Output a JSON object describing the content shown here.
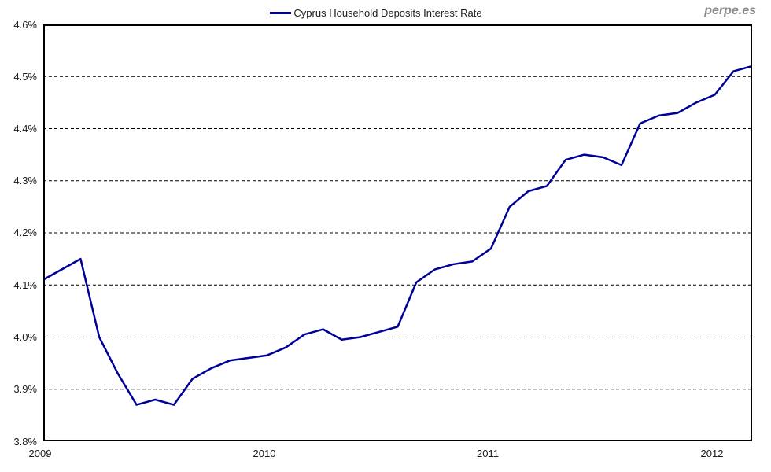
{
  "page": {
    "background": "#ffffff"
  },
  "watermark": {
    "text": "perpe.es",
    "color": "#8c8c8c"
  },
  "legend": {
    "label": "Cyprus Household Deposits Interest Rate",
    "marker_color": "#000099"
  },
  "axes": {
    "text_color": "#1a1a1a",
    "border_color": "#000000",
    "grid_color": "#000000"
  },
  "chart_data": {
    "type": "line",
    "title": "Cyprus Household Deposits Interest Rate",
    "legend_position": "top-center",
    "grid": "horizontal dashed",
    "line_color": "#000099",
    "unit": "%",
    "ylim": [
      3.8,
      4.6
    ],
    "y_ticks": [
      {
        "value": 4.6,
        "label": "4.6%"
      },
      {
        "value": 4.5,
        "label": "4.5%"
      },
      {
        "value": 4.4,
        "label": "4.4%"
      },
      {
        "value": 4.3,
        "label": "4.3%"
      },
      {
        "value": 4.2,
        "label": "4.2%"
      },
      {
        "value": 4.1,
        "label": "4.1%"
      },
      {
        "value": 4.0,
        "label": "4.0%"
      },
      {
        "value": 3.9,
        "label": "3.9%"
      },
      {
        "value": 3.8,
        "label": "3.8%"
      }
    ],
    "x_year_ticks": [
      {
        "label": "2009",
        "month_index": 0
      },
      {
        "label": "2010",
        "month_index": 12
      },
      {
        "label": "2011",
        "month_index": 24
      },
      {
        "label": "2012",
        "month_index": 36
      }
    ],
    "x": [
      "2009-01",
      "2009-02",
      "2009-03",
      "2009-04",
      "2009-05",
      "2009-06",
      "2009-07",
      "2009-08",
      "2009-09",
      "2009-10",
      "2009-11",
      "2009-12",
      "2010-01",
      "2010-02",
      "2010-03",
      "2010-04",
      "2010-05",
      "2010-06",
      "2010-07",
      "2010-08",
      "2010-09",
      "2010-10",
      "2010-11",
      "2010-12",
      "2011-01",
      "2011-02",
      "2011-03",
      "2011-04",
      "2011-05",
      "2011-06",
      "2011-07",
      "2011-08",
      "2011-09",
      "2011-10",
      "2011-11",
      "2011-12",
      "2012-01",
      "2012-02",
      "2012-03"
    ],
    "series": [
      {
        "name": "Cyprus Household Deposits Interest Rate",
        "values": [
          4.11,
          4.13,
          4.15,
          4.0,
          3.93,
          3.87,
          3.88,
          3.87,
          3.92,
          3.94,
          3.955,
          3.96,
          3.965,
          3.98,
          4.005,
          4.015,
          3.995,
          4.0,
          4.01,
          4.02,
          4.105,
          4.13,
          4.14,
          4.145,
          4.17,
          4.25,
          4.28,
          4.29,
          4.34,
          4.35,
          4.345,
          4.33,
          4.41,
          4.425,
          4.43,
          4.45,
          4.465,
          4.51,
          4.52
        ]
      }
    ]
  }
}
